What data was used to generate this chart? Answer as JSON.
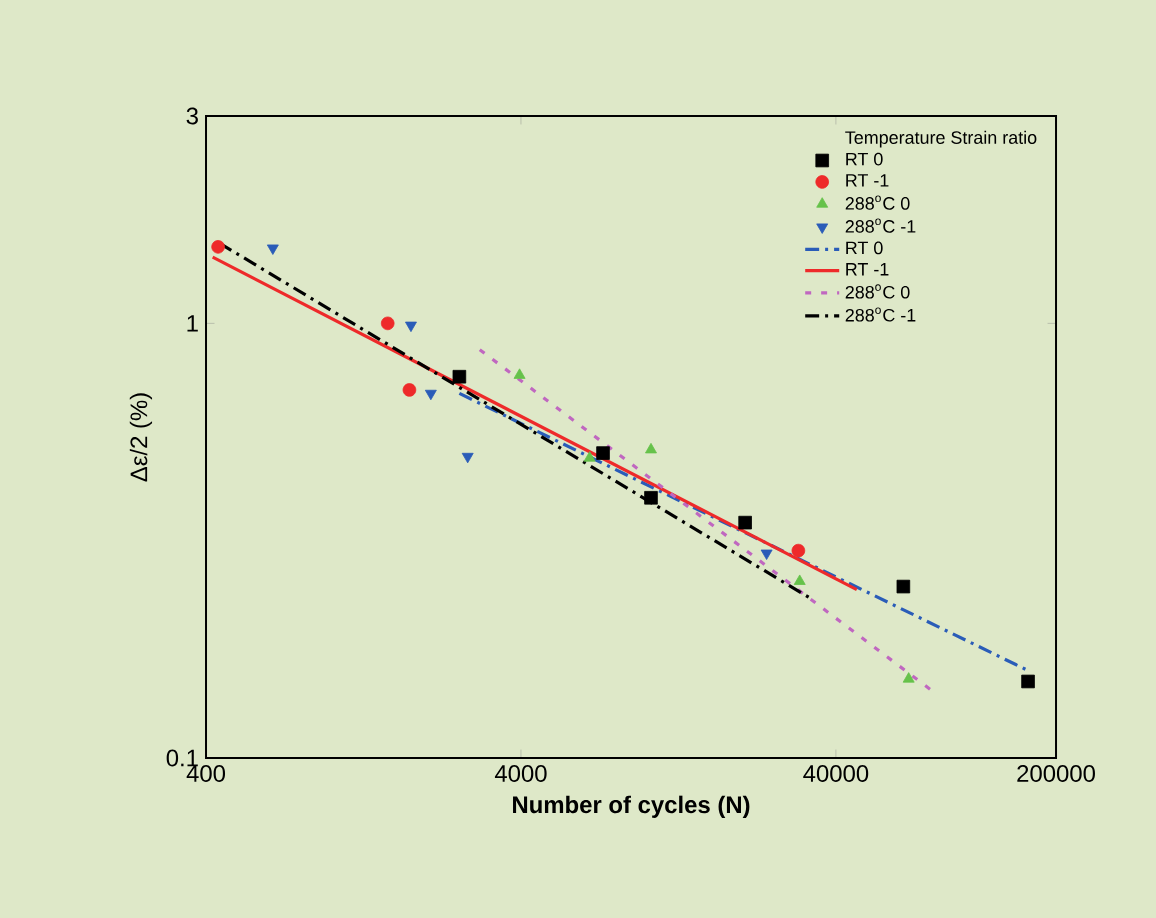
{
  "chart_data": {
    "type": "scatter",
    "xlabel": "Number of cycles (N)",
    "ylabel": "Δε/2 (%)",
    "log": "xy",
    "xlim": [
      400,
      200000
    ],
    "xticks": [
      400,
      4000,
      40000,
      200000
    ],
    "ylim": [
      0.1,
      3
    ],
    "yticks": [
      0.1,
      1,
      3
    ],
    "legend": "top right",
    "legend_title": "Temperature Strain ratio",
    "grid": false,
    "series": [
      {
        "name": "RT 0",
        "marker": "square",
        "color": "#000000",
        "x": [
          2550,
          7290,
          10350,
          20600,
          65500,
          163000
        ],
        "values": [
          0.754,
          0.503,
          0.397,
          0.348,
          0.248,
          0.15
        ]
      },
      {
        "name": "RT -1",
        "marker": "circle",
        "color": "#ee2a2a",
        "x": [
          437,
          1510,
          1770,
          30400
        ],
        "values": [
          1.5,
          1.0,
          0.703,
          0.3
        ]
      },
      {
        "name": "288$^{o}$C 0",
        "marker": "triangle",
        "color": "#66c24a",
        "x": [
          3960,
          6610,
          10350,
          30700,
          68100
        ],
        "values": [
          0.76,
          0.49,
          0.512,
          0.255,
          0.152
        ]
      },
      {
        "name": "288$^{o}$C -1",
        "marker": "triangle-down",
        "color": "#2a5cb8",
        "x": [
          652,
          1790,
          2070,
          2710,
          24100
        ],
        "values": [
          1.49,
          0.99,
          0.69,
          0.494,
          0.296
        ]
      },
      {
        "name": "RT 0",
        "type": "line",
        "line_style": "dashdot",
        "color": "#2a5cb8",
        "x": [
          2550,
          160000
        ],
        "values": [
          0.69,
          0.16
        ]
      },
      {
        "name": "RT -1",
        "type": "line",
        "line_style": "solid",
        "color": "#ee2a2a",
        "x": [
          420,
          46600
        ],
        "values": [
          1.42,
          0.244
        ]
      },
      {
        "name": "288$^{o}$C 0",
        "type": "line",
        "line_style": "dotted",
        "color": "#c067c0",
        "x": [
          2960,
          79600
        ],
        "values": [
          0.87,
          0.144
        ]
      },
      {
        "name": "288$^{o}$C -1",
        "type": "line",
        "line_style": "dashdot",
        "color": "#000000",
        "x": [
          441,
          33900
        ],
        "values": [
          1.53,
          0.231
        ]
      }
    ]
  }
}
